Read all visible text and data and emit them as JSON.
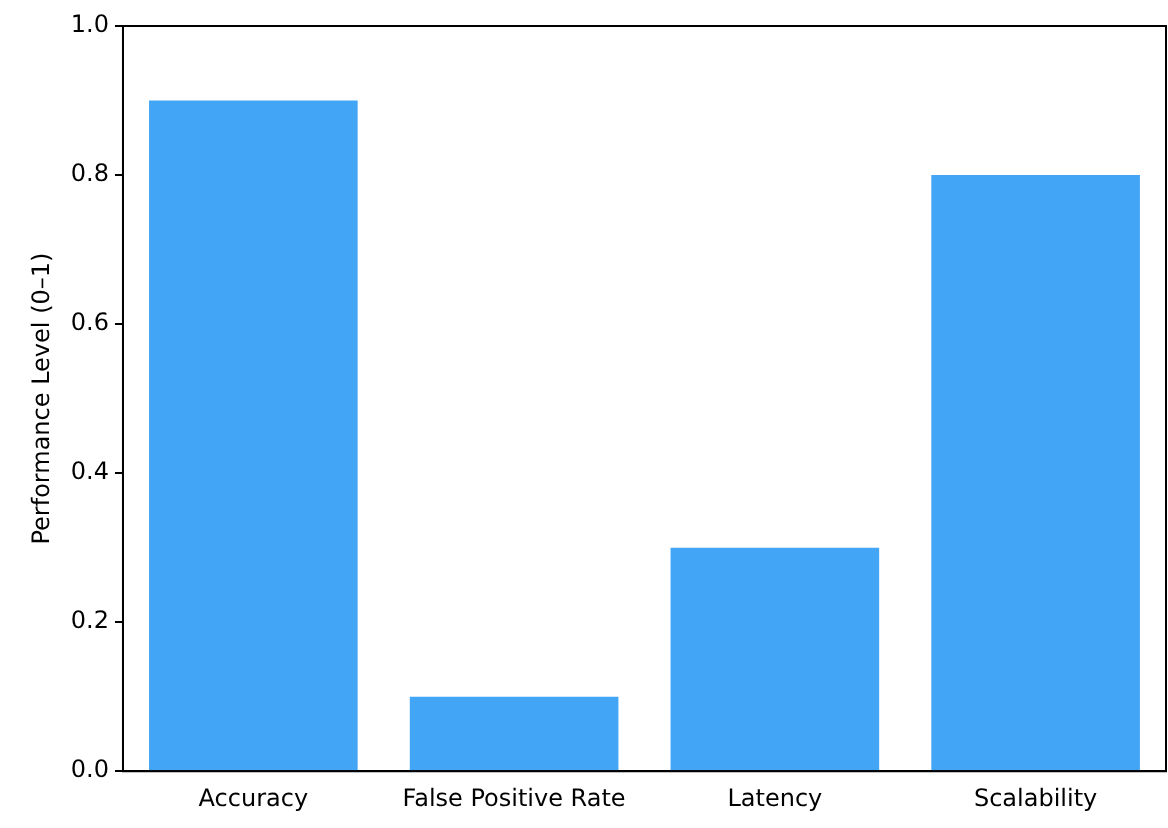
{
  "chart_data": {
    "type": "bar",
    "ylabel": "Performance Level (0–1)",
    "categories": [
      "Accuracy",
      "False Positive Rate",
      "Latency",
      "Scalability"
    ],
    "values": [
      0.9,
      0.1,
      0.3,
      0.8
    ],
    "color": "#42a5f5",
    "ylim": [
      0,
      1
    ],
    "yticks": [
      {
        "value": 0,
        "label": "0.0"
      },
      0.2,
      0.4,
      0.6,
      0.8,
      {
        "value": 1,
        "label": "1.0"
      }
    ],
    "grid": false,
    "legend": false
  }
}
